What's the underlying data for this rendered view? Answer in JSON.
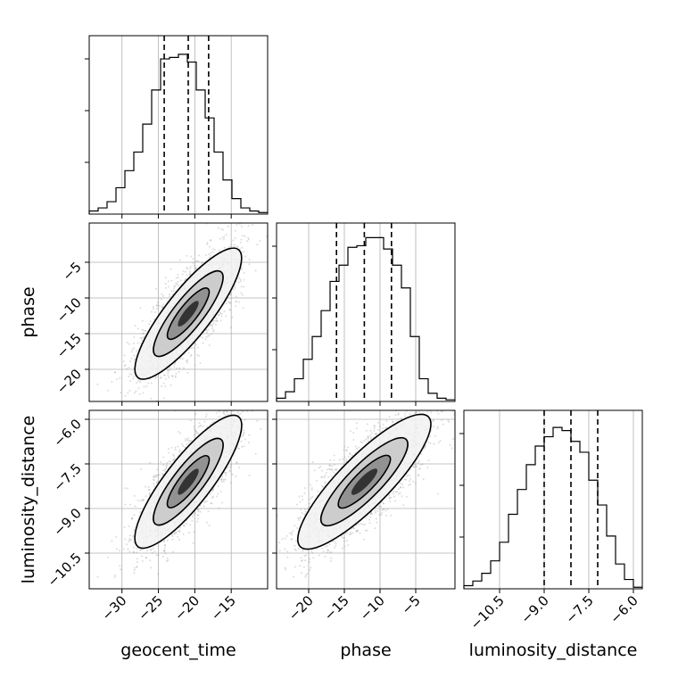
{
  "chart_data": {
    "type": "corner",
    "parameters": [
      "geocent_time",
      "phase",
      "luminosity_distance"
    ],
    "axis_labels": {
      "geocent_time": "geocent_time",
      "phase": "phase",
      "luminosity_distance": "luminosity_distance"
    },
    "ranges": {
      "geocent_time": [
        -34.5,
        -10.0
      ],
      "phase": [
        -24.5,
        0.5
      ],
      "luminosity_distance": [
        -11.7,
        -5.7
      ]
    },
    "ticks": {
      "geocent_time": [
        {
          "v": -30,
          "label": "−30"
        },
        {
          "v": -25,
          "label": "−25"
        },
        {
          "v": -20,
          "label": "−20"
        },
        {
          "v": -15,
          "label": "−15"
        }
      ],
      "phase": [
        {
          "v": -20,
          "label": "−20"
        },
        {
          "v": -15,
          "label": "−15"
        },
        {
          "v": -10,
          "label": "−10"
        },
        {
          "v": -5,
          "label": "−5"
        }
      ],
      "luminosity_distance": [
        {
          "v": -10.5,
          "label": "−10.5"
        },
        {
          "v": -9.0,
          "label": "−9.0"
        },
        {
          "v": -7.5,
          "label": "−7.5"
        },
        {
          "v": -6.0,
          "label": "−6.0"
        }
      ]
    },
    "quantiles": {
      "geocent_time": [
        -24.2,
        -20.9,
        -18.1
      ],
      "phase": [
        -16.1,
        -12.2,
        -8.4
      ],
      "luminosity_distance": [
        -9.0,
        -8.1,
        -7.2
      ]
    },
    "histograms": {
      "geocent_time": {
        "bins": 20,
        "counts": [
          2,
          4,
          8,
          17,
          28,
          40,
          58,
          80,
          100,
          101,
          103,
          98,
          80,
          62,
          40,
          22,
          10,
          4,
          2,
          1
        ],
        "ymax": 115
      },
      "phase": {
        "bins": 20,
        "counts": [
          2,
          6,
          14,
          26,
          40,
          56,
          74,
          84,
          95,
          96,
          101,
          101,
          94,
          84,
          70,
          40,
          14,
          5,
          2,
          1
        ],
        "ymax": 110
      },
      "luminosity_distance": {
        "bins": 20,
        "counts": [
          2,
          5,
          10,
          18,
          30,
          48,
          64,
          80,
          92,
          98,
          104,
          102,
          95,
          88,
          70,
          54,
          34,
          16,
          6,
          1
        ],
        "ymax": 115
      }
    },
    "correlation": {
      "mean": [
        -20.9,
        -12.2,
        -8.1
      ],
      "sd": [
        3.0,
        3.9,
        0.95
      ]
    }
  }
}
